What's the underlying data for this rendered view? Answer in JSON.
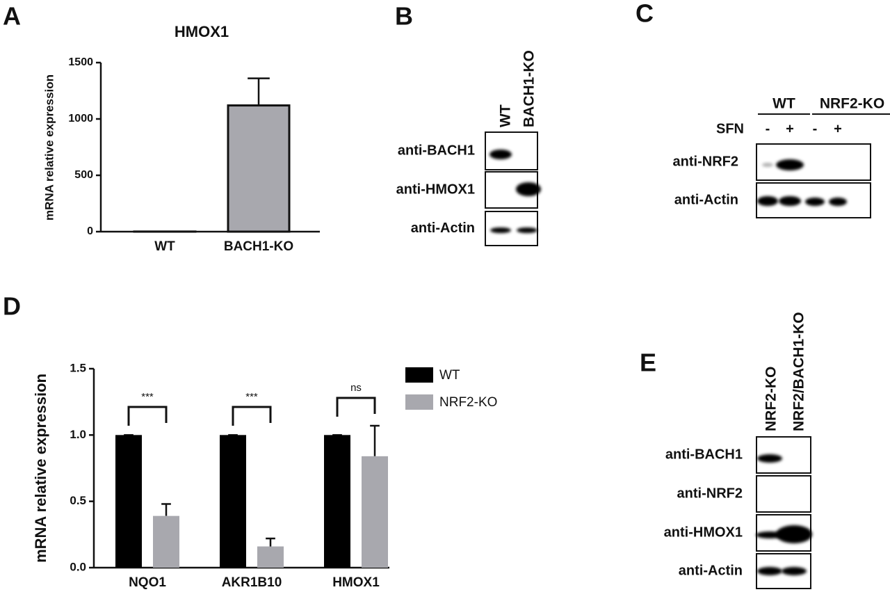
{
  "chart_data": [
    {
      "type": "bar",
      "panel_label": "A",
      "title": "HMOX1",
      "ylabel": "mRNA relative expression",
      "categories": [
        "WT",
        "BACH1-KO"
      ],
      "values": [
        1,
        1120
      ],
      "errors": [
        0,
        240
      ],
      "color": "#a8a8ae",
      "ylim": [
        0,
        1500
      ],
      "yticks": [
        0,
        500,
        1000,
        1500
      ]
    },
    {
      "type": "grouped_bar",
      "panel_label": "D",
      "ylabel": "mRNA relative expression",
      "categories": [
        "NQO1",
        "AKR1B10",
        "HMOX1"
      ],
      "series": [
        {
          "name": "WT",
          "color": "#000000",
          "values": [
            1,
            1,
            1
          ],
          "errors": [
            0,
            0,
            0
          ]
        },
        {
          "name": "NRF2-KO",
          "color": "#a8a8ae",
          "values": [
            0.39,
            0.16,
            0.84
          ],
          "errors": [
            0.09,
            0.06,
            0.23
          ]
        }
      ],
      "annotations": [
        "***",
        "***",
        "ns"
      ],
      "ylim": [
        0,
        1.5
      ],
      "yticks": [
        {
          "value": 0,
          "label": "0.0"
        },
        0.5,
        {
          "value": 1,
          "label": "1.0"
        },
        1.5
      ]
    }
  ],
  "blots": [
    {
      "panel_label": "B",
      "lanes": [
        "WT",
        "BACH1-KO"
      ],
      "rows": [
        "anti-BACH1",
        "anti-HMOX1",
        "anti-Actin"
      ]
    },
    {
      "panel_label": "C",
      "groups": [
        "WT",
        "NRF2-KO"
      ],
      "treatment": "SFN",
      "lane_marks": [
        "-",
        "+",
        "-",
        "+"
      ],
      "rows": [
        "anti-NRF2",
        "anti-Actin"
      ]
    },
    {
      "panel_label": "E",
      "lanes": [
        "NRF2-KO",
        "NRF2/BACH1-KO"
      ],
      "rows": [
        "anti-BACH1",
        "anti-NRF2",
        "anti-HMOX1",
        "anti-Actin"
      ]
    }
  ]
}
